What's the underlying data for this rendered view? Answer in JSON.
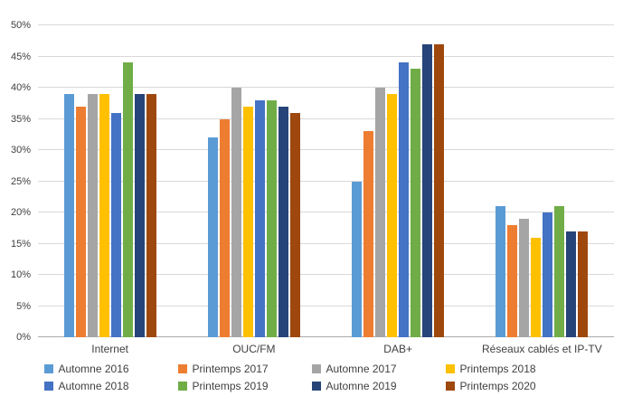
{
  "chart_data": {
    "type": "bar",
    "title": "",
    "xlabel": "",
    "ylabel": "",
    "ylim": [
      0,
      50
    ],
    "ytick_step": 5,
    "ytick_suffix": "%",
    "grid": true,
    "legend_position": "bottom",
    "categories": [
      "Internet",
      "OUC/FM",
      "DAB+",
      "Réseaux cablés et IP-TV"
    ],
    "series": [
      {
        "name": "Automne 2016",
        "color": "#5B9BD5",
        "values": [
          39,
          32,
          25,
          21
        ]
      },
      {
        "name": "Printemps 2017",
        "color": "#ED7D31",
        "values": [
          37,
          35,
          33,
          18
        ]
      },
      {
        "name": "Automne 2017",
        "color": "#A5A5A5",
        "values": [
          39,
          40,
          40,
          19
        ]
      },
      {
        "name": "Printemps 2018",
        "color": "#FFC000",
        "values": [
          39,
          37,
          39,
          16
        ]
      },
      {
        "name": "Automne 2018",
        "color": "#4472C4",
        "values": [
          36,
          38,
          44,
          20
        ]
      },
      {
        "name": "Printemps 2019",
        "color": "#70AD47",
        "values": [
          44,
          38,
          43,
          21
        ]
      },
      {
        "name": "Automne 2019",
        "color": "#264478",
        "values": [
          39,
          37,
          47,
          17
        ]
      },
      {
        "name": "Printemps 2020",
        "color": "#9E480E",
        "values": [
          39,
          36,
          47,
          17
        ]
      }
    ],
    "colors": {
      "axis_text": "#404040",
      "gridline": "#D9D9D9",
      "baseline": "#ACACAC",
      "background": "#FFFFFF"
    }
  }
}
